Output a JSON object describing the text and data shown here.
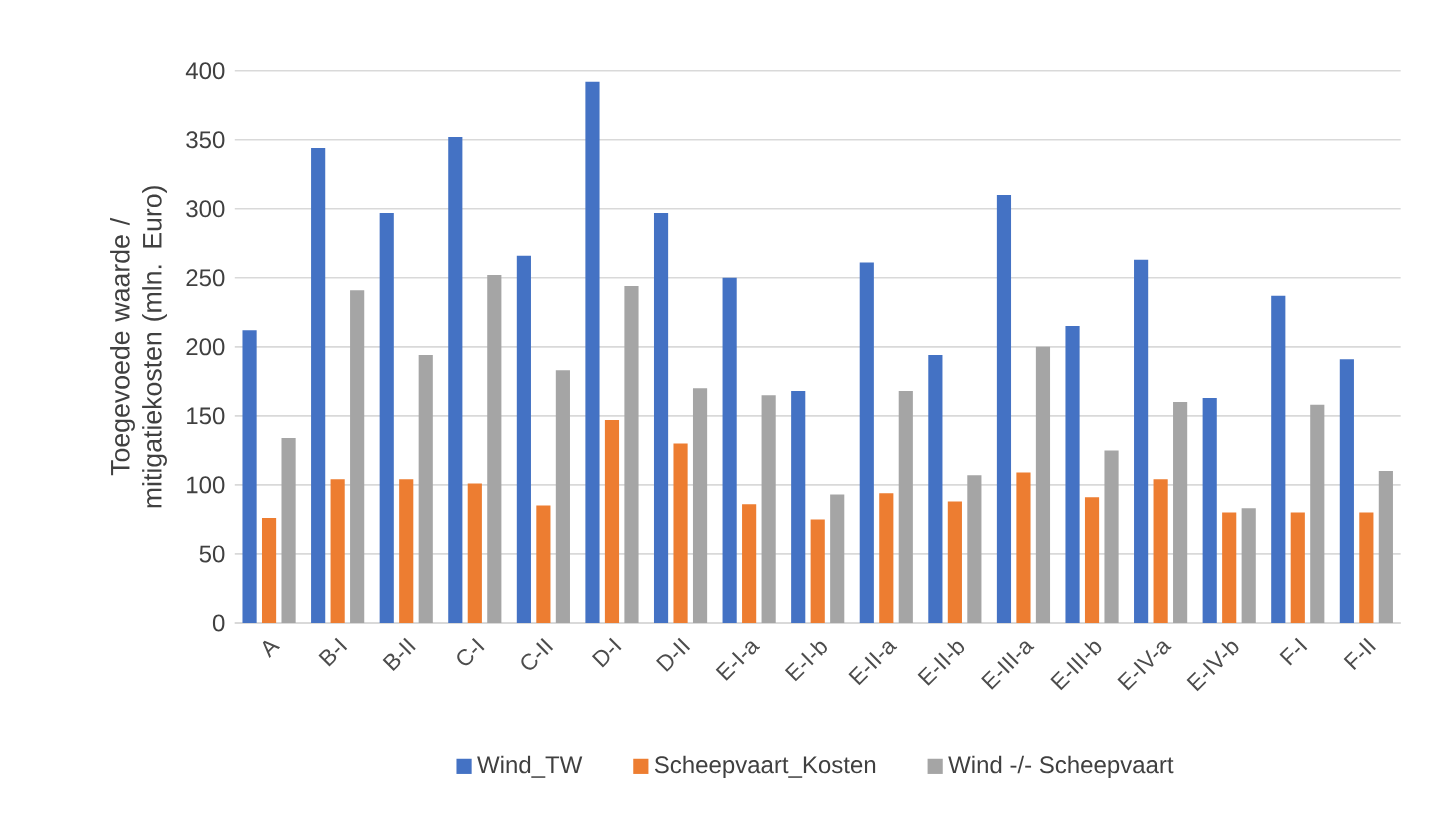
{
  "chart_data": {
    "type": "bar",
    "ylabel": "Toegevoede waarde / mitigatiekosten (mln. Euro)",
    "categories": [
      "A",
      "B-I",
      "B-II",
      "C-I",
      "C-II",
      "D-I",
      "D-II",
      "E-I-a",
      "E-I-b",
      "E-II-a",
      "E-II-b",
      "E-III-a",
      "E-III-b",
      "E-IV-a",
      "E-IV-b",
      "F-I",
      "F-II"
    ],
    "series": [
      {
        "name": "Wind_TW",
        "color": "#4472c4",
        "values": [
          212,
          344,
          297,
          352,
          266,
          392,
          297,
          250,
          168,
          261,
          194,
          310,
          215,
          263,
          163,
          237,
          191
        ]
      },
      {
        "name": "Scheepvaart_Kosten",
        "color": "#ed7d31",
        "values": [
          76,
          104,
          104,
          101,
          85,
          147,
          130,
          86,
          75,
          94,
          88,
          109,
          91,
          104,
          80,
          80,
          80
        ]
      },
      {
        "name": "Wind -/- Scheepvaart",
        "color": "#a5a5a5",
        "values": [
          134,
          241,
          194,
          252,
          183,
          244,
          170,
          165,
          93,
          168,
          107,
          200,
          125,
          160,
          83,
          158,
          110
        ]
      }
    ],
    "ylim": [
      0,
      400
    ],
    "yticks": [
      0,
      50,
      100,
      150,
      200,
      250,
      300,
      350,
      400
    ],
    "grid": "y",
    "legend": "bottom"
  }
}
